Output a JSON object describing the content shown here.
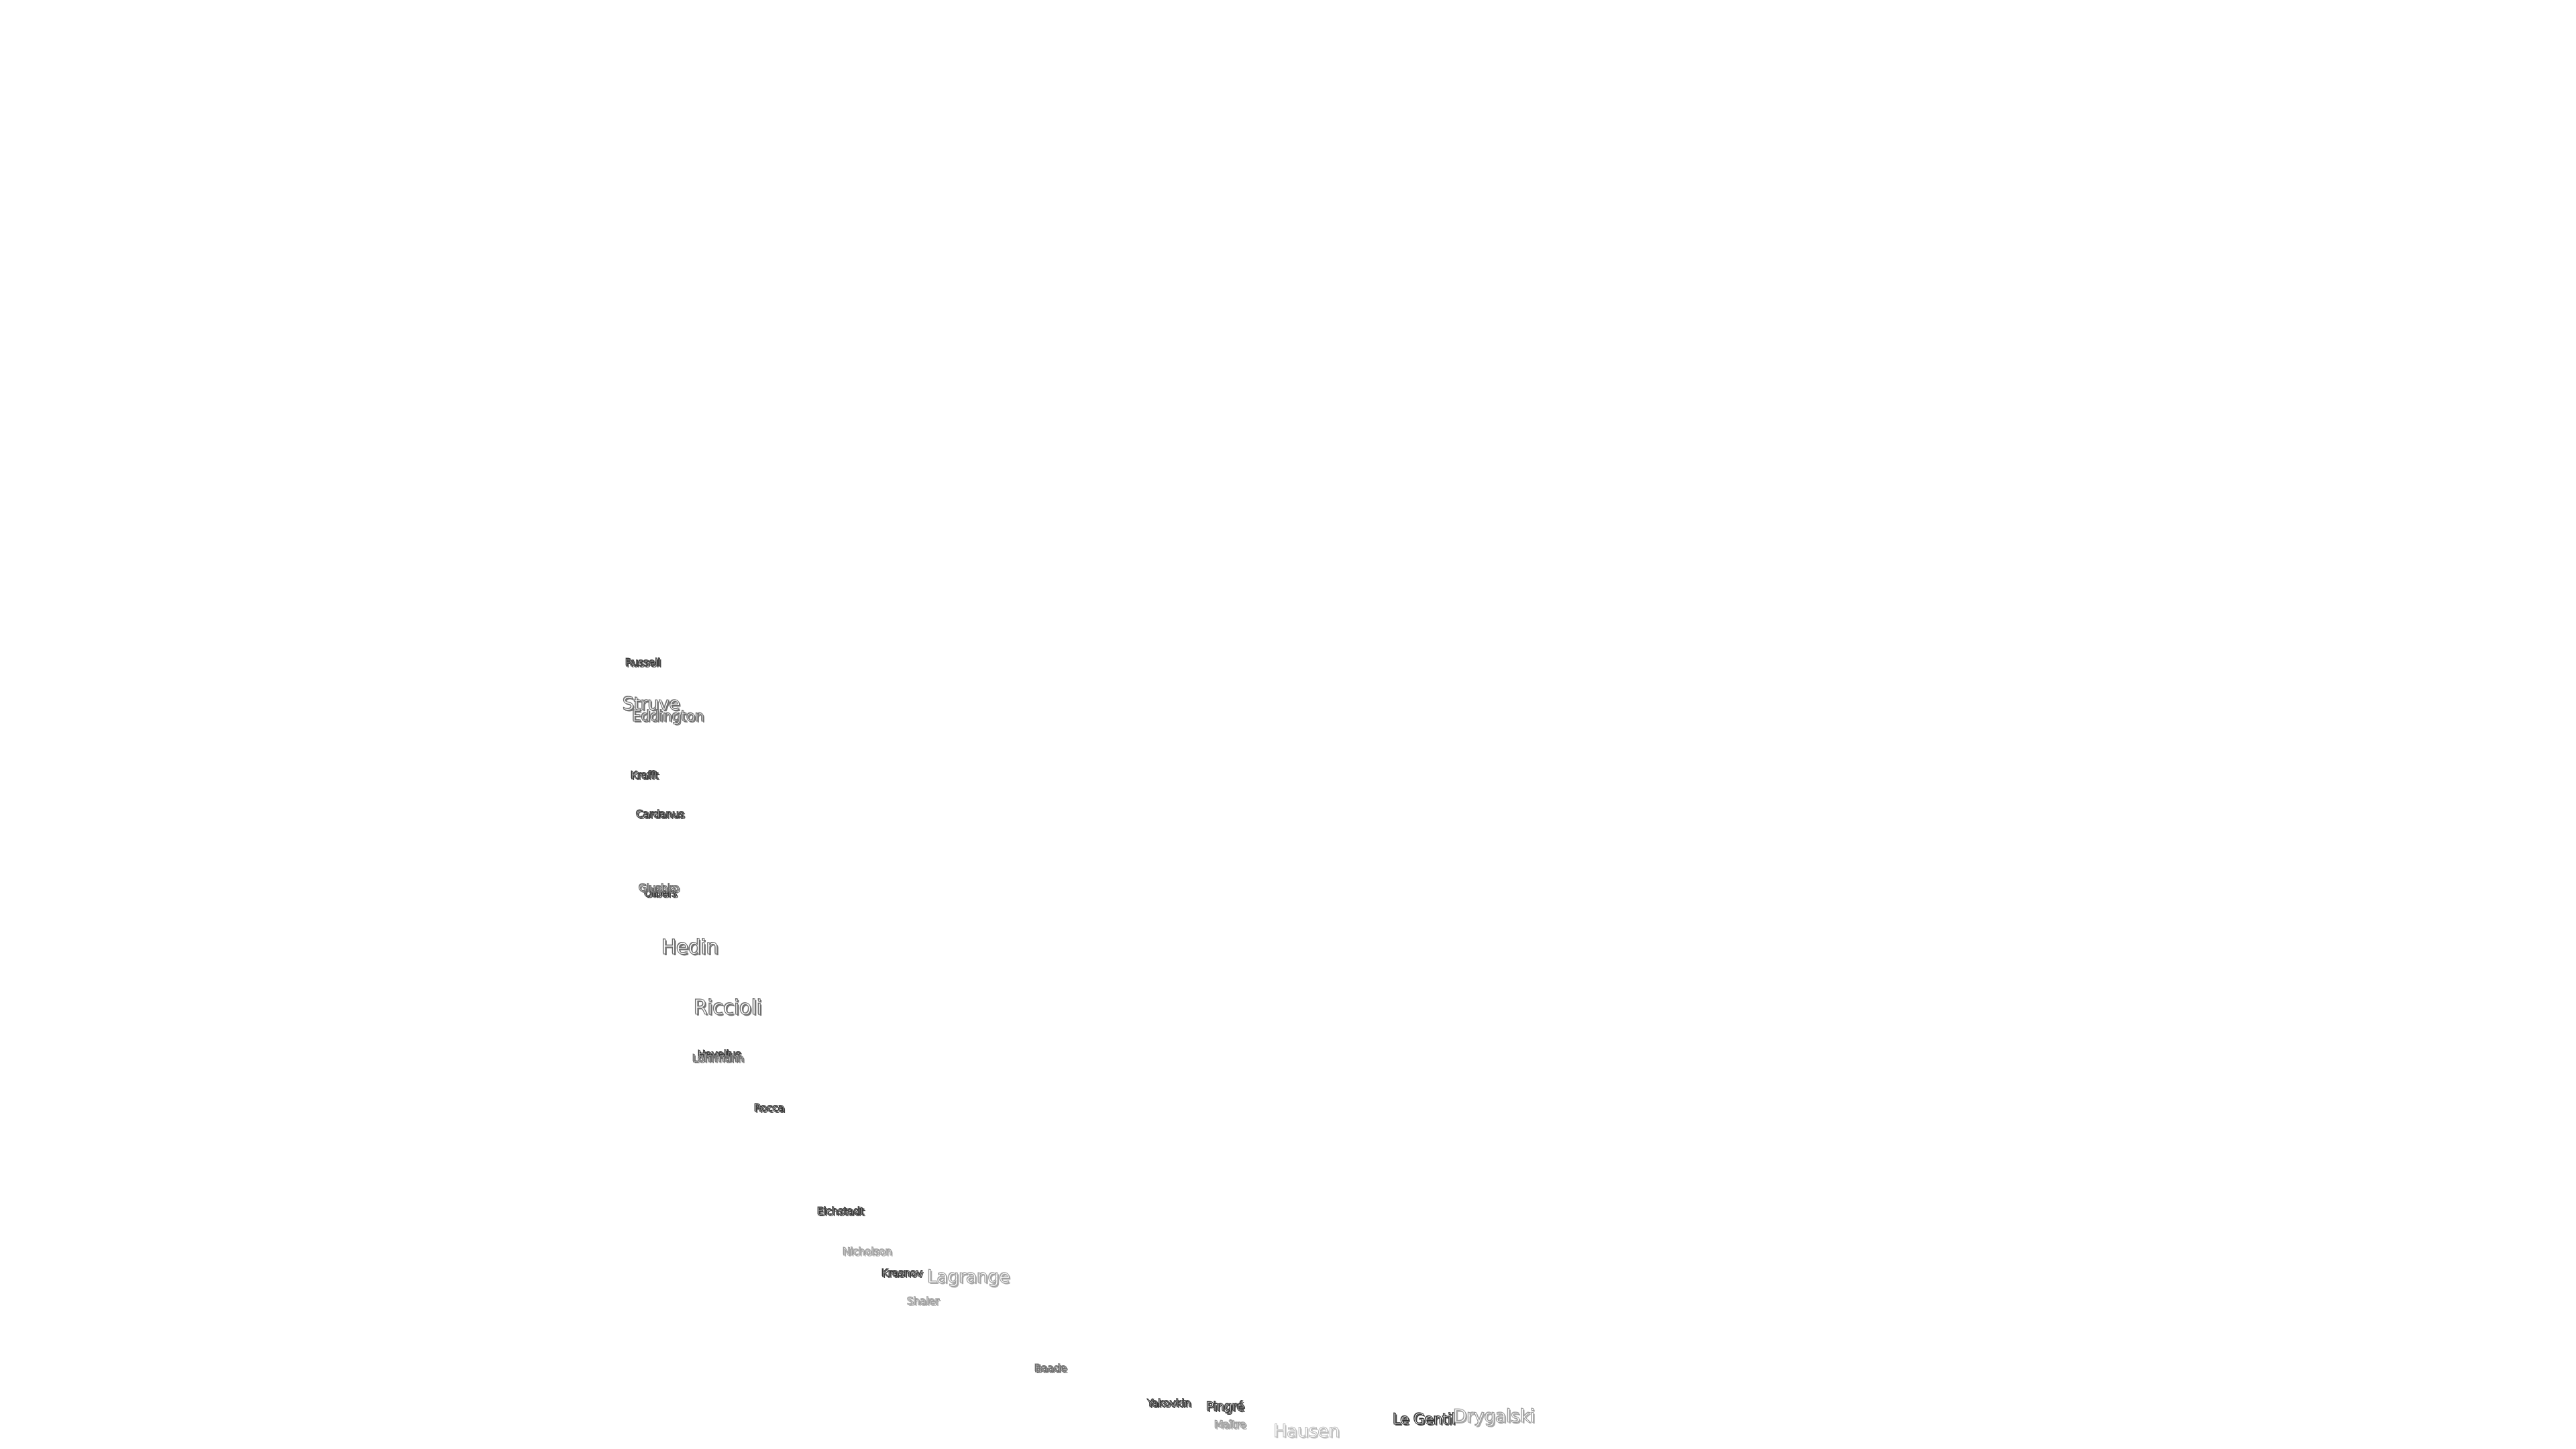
{
  "map": {
    "labels": [
      {
        "id": "russell",
        "text": "Russell"
      },
      {
        "id": "struve",
        "text": "Struve"
      },
      {
        "id": "eddington",
        "text": "Eddington"
      },
      {
        "id": "krafft",
        "text": "Krafft"
      },
      {
        "id": "cardanus",
        "text": "Cardanus"
      },
      {
        "id": "olbers",
        "text": "Olbers"
      },
      {
        "id": "glushko",
        "text": "Glushko"
      },
      {
        "id": "hedin",
        "text": "Hedin"
      },
      {
        "id": "riccioli",
        "text": "Riccioli"
      },
      {
        "id": "hevelius",
        "text": "Hevelius"
      },
      {
        "id": "lohrmann",
        "text": "Lohrmann"
      },
      {
        "id": "rocca",
        "text": "Rocca"
      },
      {
        "id": "eichstadt",
        "text": "Eichstadt"
      },
      {
        "id": "nicholson",
        "text": "Nicholson"
      },
      {
        "id": "krasnov",
        "text": "Krasnov"
      },
      {
        "id": "lagrange",
        "text": "Lagrange"
      },
      {
        "id": "shaler",
        "text": "Shaler"
      },
      {
        "id": "baade",
        "text": "Baade"
      },
      {
        "id": "yakovkin",
        "text": "Yakovkin"
      },
      {
        "id": "pingre",
        "text": "Pingré"
      },
      {
        "id": "maitre",
        "text": "Maître"
      },
      {
        "id": "hausen",
        "text": "Hausen"
      },
      {
        "id": "le-gentil",
        "text": "Le Gentil"
      },
      {
        "id": "drygalski",
        "text": "Drygalski"
      }
    ]
  }
}
